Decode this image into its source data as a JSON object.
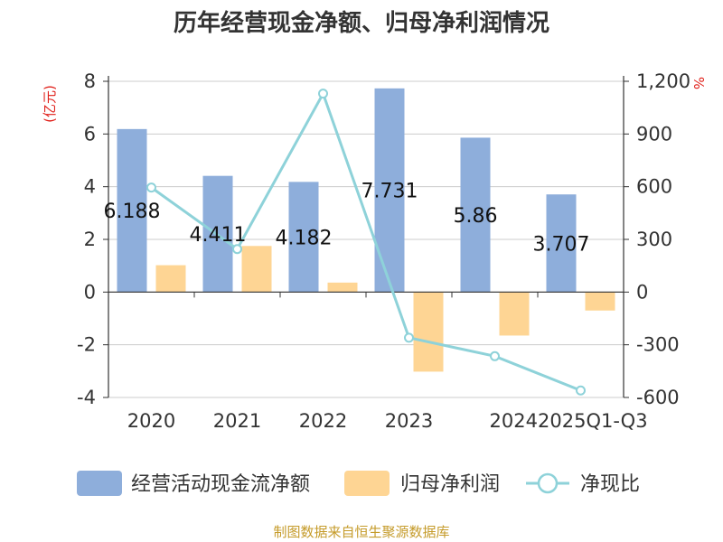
{
  "chart_data": {
    "type": "bar",
    "title": "历年经营现金净额、归母净利润情况",
    "categories": [
      "2020",
      "2021",
      "2022",
      "2023",
      "2024",
      "2025Q1-Q3"
    ],
    "left_axis": {
      "unit": "(亿元)",
      "ylim": [
        -4,
        8
      ],
      "ticks": [
        "-4",
        "-2",
        "0",
        "2",
        "4",
        "6",
        "8"
      ]
    },
    "right_axis": {
      "unit": "%",
      "ylim": [
        -600,
        1200
      ],
      "ticks": [
        "-600",
        "-300",
        "0",
        "300",
        "600",
        "900",
        "1,200"
      ]
    },
    "series": [
      {
        "name": "经营活动现金流净额",
        "kind": "bar",
        "axis": "left",
        "values": [
          6.188,
          4.411,
          4.182,
          7.731,
          5.86,
          3.707
        ],
        "labels": [
          "6.188",
          "4.411",
          "4.182",
          "7.731",
          "5.86",
          "3.707"
        ]
      },
      {
        "name": "归母净利润",
        "kind": "bar",
        "axis": "left",
        "values": [
          1.02,
          1.75,
          0.36,
          -3.02,
          -1.65,
          -0.7
        ]
      },
      {
        "name": "净现比",
        "kind": "line",
        "axis": "right",
        "values": [
          595,
          245,
          1130,
          -260,
          -365,
          -560
        ]
      }
    ],
    "colors": {
      "cash": "#8eaedb",
      "profit": "#fed594",
      "ratio": "#8ed2d9",
      "grid": "#cccccc",
      "axis": "#333333",
      "unit": "#e0201a",
      "source": "#c59b2a"
    },
    "grid": true,
    "legend": "bottom",
    "source": "制图数据来自恒生聚源数据库"
  }
}
